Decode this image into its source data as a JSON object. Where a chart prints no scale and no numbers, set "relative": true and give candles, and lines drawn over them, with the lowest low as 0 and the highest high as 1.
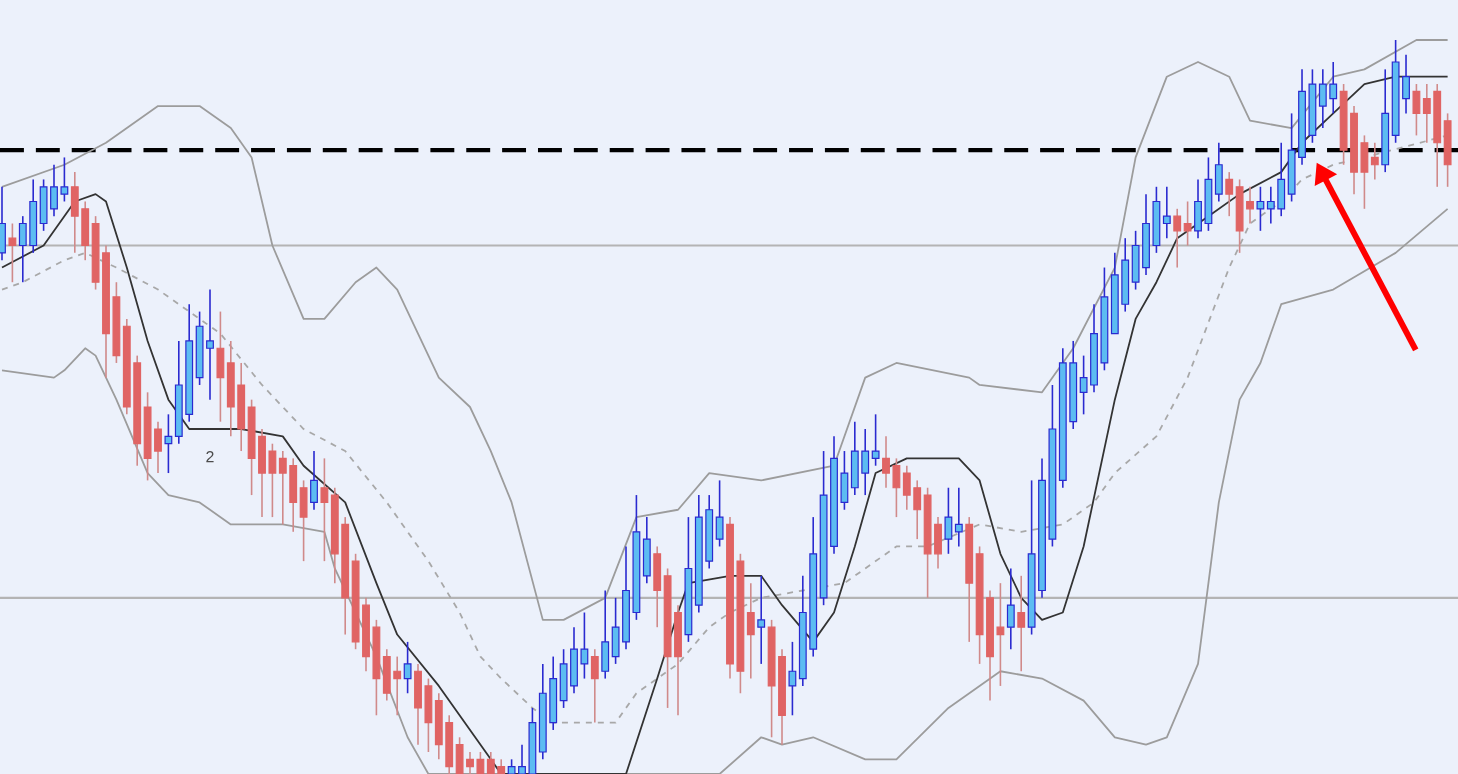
{
  "chart_data": {
    "type": "candlestick",
    "relative": true,
    "categories": [
      null,
      null,
      null,
      null,
      null,
      null,
      null,
      null,
      null,
      null,
      null,
      null,
      null,
      null,
      null,
      null,
      null,
      null,
      null,
      null,
      null,
      null,
      null,
      null,
      null,
      null,
      null,
      null,
      null,
      null,
      null,
      null,
      null,
      null,
      null,
      null,
      null,
      null,
      null,
      null,
      null,
      null,
      null,
      null,
      null,
      null,
      null,
      null,
      null,
      null,
      null,
      null,
      null,
      null,
      null,
      null,
      null,
      null,
      null,
      null,
      null,
      null,
      null,
      null,
      null,
      null,
      null,
      null,
      null,
      null,
      null,
      null,
      null,
      null,
      null,
      null,
      null,
      null,
      null,
      null,
      null,
      null,
      null,
      null,
      null,
      null,
      null,
      null,
      null,
      null,
      null,
      null,
      null,
      null,
      null,
      null,
      null,
      null,
      null,
      null,
      null,
      null,
      null,
      null,
      null,
      null,
      null,
      null,
      null,
      null,
      null,
      null,
      null,
      null,
      null,
      null,
      null,
      null,
      null,
      null,
      null,
      null,
      null,
      null,
      null,
      null,
      null,
      null,
      null,
      null,
      null,
      null,
      null,
      null,
      null,
      null,
      null,
      null,
      null,
      null
    ],
    "ohlc": [
      [
        0.71,
        0.8,
        0.7,
        0.75
      ],
      [
        0.73,
        0.75,
        0.67,
        0.72
      ],
      [
        0.72,
        0.76,
        0.67,
        0.75
      ],
      [
        0.72,
        0.81,
        0.71,
        0.78
      ],
      [
        0.75,
        0.81,
        0.74,
        0.8
      ],
      [
        0.77,
        0.83,
        0.76,
        0.8
      ],
      [
        0.79,
        0.84,
        0.78,
        0.8
      ],
      [
        0.8,
        0.82,
        0.71,
        0.76
      ],
      [
        0.77,
        0.78,
        0.7,
        0.72
      ],
      [
        0.75,
        0.76,
        0.66,
        0.67
      ],
      [
        0.71,
        0.72,
        0.54,
        0.6
      ],
      [
        0.65,
        0.67,
        0.56,
        0.57
      ],
      [
        0.61,
        0.62,
        0.49,
        0.5
      ],
      [
        0.56,
        0.57,
        0.42,
        0.45
      ],
      [
        0.5,
        0.52,
        0.4,
        0.43
      ],
      [
        0.47,
        0.48,
        0.41,
        0.44
      ],
      [
        0.45,
        0.49,
        0.41,
        0.46
      ],
      [
        0.46,
        0.59,
        0.45,
        0.53
      ],
      [
        0.49,
        0.64,
        0.48,
        0.59
      ],
      [
        0.54,
        0.63,
        0.53,
        0.61
      ],
      [
        0.58,
        0.66,
        0.51,
        0.59
      ],
      [
        0.58,
        0.63,
        0.48,
        0.54
      ],
      [
        0.56,
        0.59,
        0.46,
        0.5
      ],
      [
        0.53,
        0.56,
        0.44,
        0.47
      ],
      [
        0.5,
        0.51,
        0.38,
        0.43
      ],
      [
        0.46,
        0.47,
        0.35,
        0.41
      ],
      [
        0.44,
        0.45,
        0.35,
        0.41
      ],
      [
        0.43,
        0.44,
        0.34,
        0.41
      ],
      [
        0.42,
        0.43,
        0.33,
        0.37
      ],
      [
        0.39,
        0.4,
        0.29,
        0.35
      ],
      [
        0.37,
        0.44,
        0.36,
        0.4
      ],
      [
        0.39,
        0.43,
        0.29,
        0.37
      ],
      [
        0.38,
        0.39,
        0.26,
        0.3
      ],
      [
        0.34,
        0.35,
        0.19,
        0.24
      ],
      [
        0.29,
        0.3,
        0.17,
        0.18
      ],
      [
        0.23,
        0.24,
        0.14,
        0.16
      ],
      [
        0.2,
        0.21,
        0.08,
        0.13
      ],
      [
        0.16,
        0.17,
        0.1,
        0.11
      ],
      [
        0.14,
        0.16,
        0.08,
        0.13
      ],
      [
        0.13,
        0.18,
        0.11,
        0.15
      ],
      [
        0.14,
        0.15,
        0.04,
        0.09
      ],
      [
        0.12,
        0.13,
        0.03,
        0.07
      ],
      [
        0.1,
        0.11,
        0.02,
        0.04
      ],
      [
        0.07,
        0.08,
        0,
        0.01
      ],
      [
        0.04,
        0.05,
        0,
        0
      ],
      [
        0.02,
        0.03,
        0,
        0.01
      ],
      [
        0.02,
        0.03,
        0,
        0
      ],
      [
        0.02,
        0.03,
        0,
        0
      ],
      [
        0.01,
        0.02,
        0,
        0
      ],
      [
        0,
        0.02,
        0,
        0.01
      ],
      [
        0,
        0.04,
        0,
        0.01
      ],
      [
        0,
        0.09,
        0,
        0.07
      ],
      [
        0.03,
        0.15,
        0.02,
        0.11
      ],
      [
        0.07,
        0.16,
        0.06,
        0.13
      ],
      [
        0.1,
        0.17,
        0.09,
        0.15
      ],
      [
        0.12,
        0.2,
        0.11,
        0.17
      ],
      [
        0.15,
        0.22,
        0.13,
        0.17
      ],
      [
        0.16,
        0.17,
        0.07,
        0.13
      ],
      [
        0.14,
        0.25,
        0.13,
        0.18
      ],
      [
        0.16,
        0.24,
        0.15,
        0.2
      ],
      [
        0.18,
        0.31,
        0.17,
        0.25
      ],
      [
        0.22,
        0.38,
        0.21,
        0.33
      ],
      [
        0.27,
        0.35,
        0.26,
        0.32
      ],
      [
        0.3,
        0.31,
        0.2,
        0.25
      ],
      [
        0.27,
        0.28,
        0.09,
        0.16
      ],
      [
        0.22,
        0.23,
        0.08,
        0.16
      ],
      [
        0.19,
        0.35,
        0.18,
        0.28
      ],
      [
        0.23,
        0.38,
        0.22,
        0.35
      ],
      [
        0.29,
        0.38,
        0.28,
        0.36
      ],
      [
        0.32,
        0.4,
        0.31,
        0.35
      ],
      [
        0.34,
        0.35,
        0.13,
        0.15
      ],
      [
        0.29,
        0.3,
        0.11,
        0.14
      ],
      [
        0.22,
        0.26,
        0.13,
        0.19
      ],
      [
        0.2,
        0.27,
        0.15,
        0.21
      ],
      [
        0.2,
        0.21,
        0.05,
        0.12
      ],
      [
        0.16,
        0.17,
        0.04,
        0.08
      ],
      [
        0.12,
        0.18,
        0.08,
        0.14
      ],
      [
        0.13,
        0.27,
        0.12,
        0.22
      ],
      [
        0.17,
        0.35,
        0.16,
        0.3
      ],
      [
        0.24,
        0.44,
        0.23,
        0.38
      ],
      [
        0.31,
        0.46,
        0.3,
        0.43
      ],
      [
        0.37,
        0.44,
        0.36,
        0.41
      ],
      [
        0.39,
        0.48,
        0.38,
        0.44
      ],
      [
        0.41,
        0.47,
        0.38,
        0.44
      ],
      [
        0.43,
        0.49,
        0.42,
        0.44
      ],
      [
        0.43,
        0.46,
        0.39,
        0.41
      ],
      [
        0.42,
        0.43,
        0.35,
        0.39
      ],
      [
        0.41,
        0.42,
        0.36,
        0.38
      ],
      [
        0.39,
        0.4,
        0.32,
        0.36
      ],
      [
        0.38,
        0.39,
        0.24,
        0.3
      ],
      [
        0.34,
        0.35,
        0.28,
        0.3
      ],
      [
        0.32,
        0.39,
        0.3,
        0.35
      ],
      [
        0.33,
        0.39,
        0.31,
        0.34
      ],
      [
        0.34,
        0.35,
        0.18,
        0.26
      ],
      [
        0.3,
        0.31,
        0.15,
        0.19
      ],
      [
        0.24,
        0.25,
        0.1,
        0.16
      ],
      [
        0.2,
        0.26,
        0.12,
        0.19
      ],
      [
        0.2,
        0.28,
        0.17,
        0.23
      ],
      [
        0.22,
        0.27,
        0.14,
        0.2
      ],
      [
        0.2,
        0.4,
        0.19,
        0.3
      ],
      [
        0.25,
        0.43,
        0.24,
        0.4
      ],
      [
        0.32,
        0.53,
        0.31,
        0.47
      ],
      [
        0.4,
        0.58,
        0.39,
        0.56
      ],
      [
        0.48,
        0.59,
        0.47,
        0.56
      ],
      [
        0.52,
        0.57,
        0.49,
        0.54
      ],
      [
        0.53,
        0.64,
        0.52,
        0.6
      ],
      [
        0.56,
        0.69,
        0.55,
        0.65
      ],
      [
        0.6,
        0.71,
        0.6,
        0.68
      ],
      [
        0.64,
        0.73,
        0.63,
        0.7
      ],
      [
        0.67,
        0.74,
        0.66,
        0.72
      ],
      [
        0.69,
        0.79,
        0.68,
        0.75
      ],
      [
        0.72,
        0.8,
        0.71,
        0.78
      ],
      [
        0.75,
        0.8,
        0.73,
        0.76
      ],
      [
        0.76,
        0.77,
        0.69,
        0.74
      ],
      [
        0.75,
        0.78,
        0.72,
        0.74
      ],
      [
        0.74,
        0.81,
        0.73,
        0.78
      ],
      [
        0.75,
        0.84,
        0.74,
        0.81
      ],
      [
        0.79,
        0.86,
        0.78,
        0.83
      ],
      [
        0.81,
        0.82,
        0.76,
        0.79
      ],
      [
        0.8,
        0.81,
        0.71,
        0.74
      ],
      [
        0.78,
        0.8,
        0.75,
        0.77
      ],
      [
        0.77,
        0.8,
        0.74,
        0.78
      ],
      [
        0.77,
        0.8,
        0.75,
        0.78
      ],
      [
        0.77,
        0.86,
        0.76,
        0.81
      ],
      [
        0.79,
        0.9,
        0.78,
        0.85
      ],
      [
        0.84,
        0.96,
        0.83,
        0.93
      ],
      [
        0.87,
        0.96,
        0.86,
        0.94
      ],
      [
        0.91,
        0.96,
        0.88,
        0.94
      ],
      [
        0.92,
        0.97,
        0.9,
        0.94
      ],
      [
        0.93,
        0.94,
        0.83,
        0.85
      ],
      [
        0.9,
        0.91,
        0.79,
        0.82
      ],
      [
        0.86,
        0.87,
        0.77,
        0.82
      ],
      [
        0.84,
        0.86,
        0.81,
        0.83
      ],
      [
        0.83,
        0.96,
        0.82,
        0.9
      ],
      [
        0.87,
        1,
        0.86,
        0.97
      ],
      [
        0.92,
        0.98,
        0.9,
        0.95
      ],
      [
        0.93,
        0.94,
        0.87,
        0.9
      ],
      [
        0.92,
        0.94,
        0.86,
        0.9
      ],
      [
        0.93,
        0.94,
        0.8,
        0.86
      ],
      [
        0.89,
        0.9,
        0.8,
        0.83
      ]
    ],
    "series": [
      {
        "type": "line",
        "color": "#9c9c9c",
        "values": [
          0.8,
          null,
          null,
          null,
          null,
          null,
          0.83,
          null,
          null,
          null,
          0.86,
          null,
          null,
          null,
          null,
          0.91,
          null,
          null,
          null,
          0.91,
          null,
          null,
          0.88,
          null,
          0.84,
          null,
          0.72,
          null,
          null,
          0.62,
          null,
          0.62,
          null,
          null,
          0.67,
          null,
          0.69,
          null,
          0.66,
          null,
          0.6,
          null,
          0.54,
          null,
          null,
          0.5,
          null,
          0.44,
          null,
          0.37,
          null,
          null,
          0.21,
          null,
          0.21,
          null,
          null,
          null,
          0.24,
          null,
          null,
          0.35,
          null,
          null,
          null,
          0.36,
          null,
          null,
          0.41,
          null,
          null,
          null,
          null,
          0.4,
          null,
          null,
          null,
          null,
          null,
          null,
          0.42,
          null,
          null,
          0.54,
          null,
          null,
          0.56,
          null,
          null,
          null,
          null,
          null,
          null,
          0.54,
          0.53,
          null,
          null,
          null,
          null,
          null,
          0.52,
          null,
          null,
          0.58,
          null,
          null,
          null,
          0.69,
          null,
          0.84,
          null,
          null,
          0.95,
          null,
          null,
          0.97,
          null,
          null,
          0.95,
          null,
          0.89,
          null,
          null,
          null,
          0.88,
          null,
          null,
          null,
          0.95,
          null,
          null,
          0.96,
          null,
          null,
          null,
          null,
          1,
          null,
          null,
          1
        ]
      },
      {
        "type": "line",
        "color": "#9c9c9c",
        "values": [
          0.55,
          null,
          null,
          null,
          null,
          0.54,
          0.55,
          null,
          0.58,
          0.57,
          null,
          0.51,
          null,
          null,
          0.41,
          null,
          0.38,
          null,
          null,
          0.37,
          null,
          null,
          0.34,
          null,
          null,
          null,
          null,
          0.34,
          null,
          null,
          null,
          0.33,
          0.28,
          null,
          null,
          null,
          0.16,
          null,
          null,
          0.05,
          null,
          0,
          null,
          null,
          null,
          null,
          null,
          null,
          null,
          null,
          null,
          null,
          null,
          null,
          null,
          null,
          null,
          null,
          null,
          null,
          null,
          null,
          null,
          null,
          null,
          null,
          null,
          null,
          null,
          0,
          null,
          null,
          null,
          0.05,
          null,
          0.04,
          null,
          null,
          0.05,
          null,
          null,
          null,
          null,
          0.02,
          null,
          null,
          0.02,
          null,
          null,
          null,
          null,
          0.09,
          null,
          null,
          null,
          null,
          0.14,
          null,
          null,
          null,
          0.13,
          null,
          null,
          null,
          0.1,
          null,
          null,
          0.05,
          null,
          null,
          0.04,
          null,
          0.05,
          null,
          null,
          0.15,
          null,
          0.37,
          null,
          0.51,
          null,
          0.56,
          null,
          0.64,
          null,
          null,
          null,
          null,
          0.66,
          null,
          null,
          null,
          null,
          null,
          0.71,
          null,
          null,
          null,
          null,
          0.77
        ]
      },
      {
        "type": "line",
        "color": "#a8a8a8",
        "line_style": "dashed",
        "values": [
          0.66,
          null,
          0.67,
          null,
          null,
          null,
          0.7,
          null,
          0.71,
          null,
          null,
          0.69,
          null,
          null,
          null,
          0.66,
          null,
          null,
          0.63,
          null,
          null,
          0.6,
          null,
          null,
          null,
          0.53,
          null,
          null,
          null,
          0.47,
          null,
          null,
          null,
          0.44,
          null,
          null,
          null,
          0.37,
          null,
          null,
          null,
          0.29,
          null,
          null,
          0.22,
          null,
          0.16,
          null,
          0.13,
          null,
          null,
          0.09,
          null,
          0.07,
          null,
          null,
          0.07,
          null,
          null,
          0.07,
          null,
          0.11,
          null,
          null,
          null,
          0.15,
          null,
          null,
          0.2,
          null,
          0.22,
          null,
          null,
          0.24,
          null,
          null,
          null,
          0.25,
          null,
          null,
          null,
          0.26,
          null,
          0.28,
          null,
          null,
          0.31,
          null,
          null,
          0.31,
          null,
          null,
          null,
          null,
          0.34,
          null,
          null,
          null,
          0.33,
          null,
          null,
          null,
          0.34,
          null,
          null,
          0.37,
          null,
          0.41,
          null,
          null,
          null,
          0.46,
          null,
          null,
          0.54,
          null,
          null,
          null,
          0.69,
          null,
          0.75,
          null,
          null,
          0.78,
          null,
          0.81,
          null,
          null,
          0.83,
          null,
          null,
          0.84,
          null,
          null,
          null,
          null,
          null,
          null,
          null,
          0.87
        ]
      },
      {
        "type": "line",
        "color": "#333333",
        "values": [
          0.69,
          null,
          null,
          null,
          0.72,
          null,
          null,
          0.78,
          null,
          0.79,
          0.78,
          null,
          0.69,
          null,
          0.59,
          null,
          0.51,
          null,
          0.47,
          null,
          0.47,
          null,
          null,
          0.47,
          null,
          null,
          null,
          0.46,
          null,
          0.42,
          null,
          null,
          null,
          0.37,
          null,
          null,
          0.26,
          null,
          0.19,
          null,
          null,
          null,
          0.12,
          null,
          null,
          null,
          null,
          0.02,
          0,
          null,
          null,
          null,
          null,
          null,
          null,
          null,
          null,
          null,
          null,
          null,
          0,
          null,
          null,
          0.13,
          null,
          0.22,
          0.26,
          null,
          null,
          null,
          0.27,
          null,
          null,
          0.27,
          null,
          0.23,
          null,
          null,
          0.18,
          null,
          0.22,
          null,
          0.31,
          null,
          0.41,
          null,
          null,
          0.43,
          null,
          null,
          null,
          null,
          0.43,
          null,
          0.4,
          null,
          0.3,
          null,
          0.24,
          null,
          0.21,
          null,
          0.22,
          null,
          0.31,
          null,
          null,
          0.51,
          null,
          0.62,
          null,
          0.67,
          null,
          0.73,
          null,
          null,
          0.76,
          null,
          null,
          0.79,
          null,
          null,
          null,
          0.82,
          null,
          0.86,
          null,
          null,
          0.9,
          null,
          null,
          0.94,
          null,
          null,
          0.95,
          null,
          null,
          null,
          null,
          0.95
        ]
      }
    ],
    "ref_lines": [
      {
        "axis": "y",
        "value": 0.85,
        "color": "#000000",
        "line_style": "dashed"
      },
      {
        "axis": "y",
        "value": 0.72,
        "color": "#b4b4b4"
      },
      {
        "axis": "y",
        "value": 0.24,
        "color": "#b4b4b4"
      }
    ],
    "annotations": [
      "2"
    ]
  }
}
